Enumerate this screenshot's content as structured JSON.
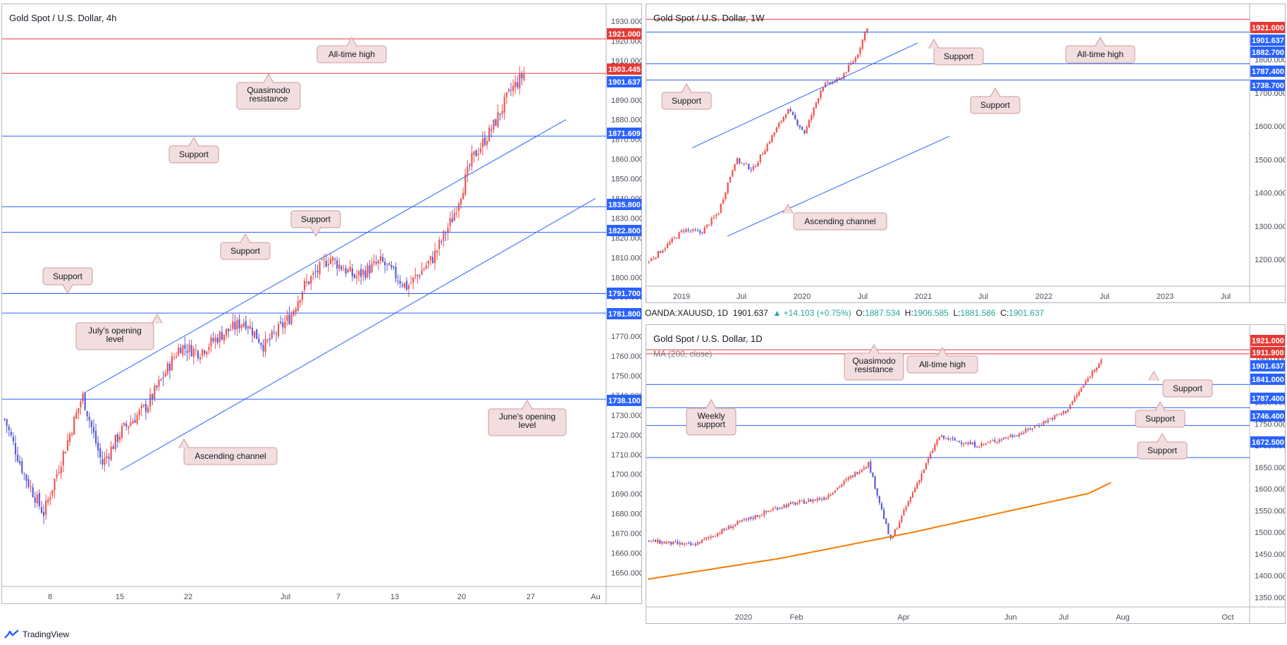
{
  "panels": [
    {
      "id": "h4",
      "title": "Gold Spot / U.S. Dollar, 4h",
      "ymin": 1643,
      "ymax": 1935,
      "ticks": [
        "1650.000",
        "1660.000",
        "1670.000",
        "1680.000",
        "1690.000",
        "1700.000",
        "1710.000",
        "1720.000",
        "1730.000",
        "1740.000",
        "1750.000",
        "1760.000",
        "1770.000",
        "1780.000",
        "1790.000",
        "1800.000",
        "1810.000",
        "1820.000",
        "1830.000",
        "1840.000",
        "1850.000",
        "1860.000",
        "1870.000",
        "1880.000",
        "1890.000",
        "1900.000",
        "1910.000",
        "1920.000",
        "1930.000"
      ],
      "xlabels": [
        "8",
        "15",
        "22",
        "Jul",
        "7",
        "13",
        "20",
        "27",
        "Au"
      ],
      "levels": [
        {
          "value": "1921.000",
          "color": "#e53935",
          "kind": "resistance"
        },
        {
          "value": "1903.445",
          "color": "#e53935",
          "kind": "resistance"
        },
        {
          "value": "1901.637",
          "color": "#2962ff",
          "kind": "price"
        },
        {
          "value": "1871.609",
          "color": "#2962ff",
          "kind": "support"
        },
        {
          "value": "1835.800",
          "color": "#2962ff",
          "kind": "support"
        },
        {
          "value": "1822.800",
          "color": "#2962ff",
          "kind": "support"
        },
        {
          "value": "1791.700",
          "color": "#2962ff",
          "kind": "support"
        },
        {
          "value": "1781.800",
          "color": "#2962ff",
          "kind": "support"
        },
        {
          "value": "1738.100",
          "color": "#2962ff",
          "kind": "support"
        }
      ],
      "callouts": [
        "All-time high",
        "Quasimodo resistance",
        "Support",
        "Support",
        "Support",
        "Support",
        "July's opening level",
        "June's opening level",
        "Ascending channel"
      ]
    },
    {
      "id": "w1",
      "title": "Gold Spot / U.S. Dollar, 1W",
      "ymin": 1120,
      "ymax": 1945,
      "ticks": [
        "1200.000",
        "1300.000",
        "1400.000",
        "1500.000",
        "1600.000",
        "1700.000",
        "1800.000",
        "1900.000"
      ],
      "xlabels": [
        "2019",
        "Jul",
        "2020",
        "Jul",
        "2021",
        "Jul",
        "2022",
        "Jul",
        "2023",
        "Jul"
      ],
      "levels": [
        {
          "value": "1921.000",
          "color": "#e53935",
          "kind": "resistance"
        },
        {
          "value": "1901.637",
          "color": "#2962ff",
          "kind": "price"
        },
        {
          "value": "1882.700",
          "color": "#2962ff",
          "kind": "support"
        },
        {
          "value": "1787.400",
          "color": "#2962ff",
          "kind": "support"
        },
        {
          "value": "1738.700",
          "color": "#2962ff",
          "kind": "support"
        }
      ],
      "callouts": [
        "Support",
        "All-time high",
        "Support",
        "Support",
        "Ascending channel"
      ]
    },
    {
      "id": "d1",
      "title": "Gold Spot / U.S. Dollar, 1D",
      "ma_label": "MA (200, close)",
      "ymin": 1328,
      "ymax": 1962,
      "ticks": [
        "1350.000",
        "1400.000",
        "1450.000",
        "1500.000",
        "1550.000",
        "1600.000",
        "1650.000",
        "1700.000",
        "1750.000",
        "1800.000",
        "1850.000",
        "1900.000",
        "1950.000"
      ],
      "xlabels": [
        "2020",
        "Feb",
        "Apr",
        "Jun",
        "Jul",
        "Aug",
        "Oct"
      ],
      "levels": [
        {
          "value": "1921.000",
          "color": "#e53935",
          "kind": "resistance"
        },
        {
          "value": "1911.900",
          "color": "#e53935",
          "kind": "resistance"
        },
        {
          "value": "1901.637",
          "color": "#2962ff",
          "kind": "price"
        },
        {
          "value": "1841.000",
          "color": "#2962ff",
          "kind": "support"
        },
        {
          "value": "1787.400",
          "color": "#2962ff",
          "kind": "support"
        },
        {
          "value": "1746.400",
          "color": "#2962ff",
          "kind": "support"
        },
        {
          "value": "1672.500",
          "color": "#2962ff",
          "kind": "support"
        }
      ],
      "callouts": [
        "Quasimodo resistance",
        "All-time high",
        "Support",
        "Weekly support",
        "Support",
        "Support"
      ]
    }
  ],
  "ohlc": {
    "symbol": "OANDA:XAUUSD, 1D",
    "last": "1901.637",
    "change": "▲ +14.103 (+0.75%)",
    "o_label": "O:",
    "o": "1887.534",
    "h_label": "H:",
    "h": "1906.585",
    "l_label": "L:",
    "l": "1881.586",
    "c_label": "C:",
    "c": "1901.637"
  },
  "brand": "TradingView",
  "colors": {
    "up": "#ef5350",
    "down": "#5b5bd6",
    "support": "#2962ff",
    "resistance": "#e53935",
    "ma": "#f57c00",
    "callout_bg": "#f2dede",
    "callout_border": "#d09a9a"
  },
  "chart_data": [
    {
      "type": "candlestick",
      "title": "Gold Spot / U.S. Dollar, 4h",
      "ylim": [
        1643,
        1935
      ],
      "x_ticks": [
        "8",
        "15",
        "22",
        "Jul",
        "7",
        "13",
        "20",
        "27",
        "Au"
      ],
      "series": [
        {
          "name": "XAUUSD",
          "approx_path": [
            [
              0,
              1728
            ],
            [
              3,
              1700
            ],
            [
              6,
              1680
            ],
            [
              9,
              1710
            ],
            [
              12,
              1740
            ],
            [
              15,
              1705
            ],
            [
              18,
              1722
            ],
            [
              22,
              1735
            ],
            [
              27,
              1765
            ],
            [
              30,
              1762
            ],
            [
              33,
              1770
            ],
            [
              37,
              1778
            ],
            [
              40,
              1765
            ],
            [
              44,
              1780
            ],
            [
              46,
              1795
            ],
            [
              50,
              1810
            ],
            [
              54,
              1800
            ],
            [
              58,
              1808
            ],
            [
              62,
              1795
            ],
            [
              66,
              1810
            ],
            [
              69,
              1830
            ],
            [
              72,
              1860
            ],
            [
              75,
              1875
            ],
            [
              78,
              1895
            ],
            [
              80,
              1903
            ]
          ]
        }
      ],
      "horizontal_levels": [
        1921.0,
        1903.445,
        1871.609,
        1835.8,
        1822.8,
        1791.7,
        1781.8,
        1738.1
      ],
      "last_price": 1901.637
    },
    {
      "type": "candlestick",
      "title": "Gold Spot / U.S. Dollar, 1W",
      "ylim": [
        1120,
        1945
      ],
      "x_ticks": [
        "2019",
        "Jul",
        "2020",
        "Jul",
        "2021",
        "Jul",
        "2022",
        "Jul",
        "2023",
        "Jul"
      ],
      "series": [
        {
          "name": "XAUUSD",
          "approx_path": [
            [
              0,
              1195
            ],
            [
              0.5,
              1240
            ],
            [
              1,
              1290
            ],
            [
              1.5,
              1280
            ],
            [
              2,
              1340
            ],
            [
              2.5,
              1500
            ],
            [
              3,
              1470
            ],
            [
              3.5,
              1560
            ],
            [
              4,
              1650
            ],
            [
              4.5,
              1580
            ],
            [
              5,
              1720
            ],
            [
              5.5,
              1740
            ],
            [
              6,
              1810
            ],
            [
              6.3,
              1900
            ]
          ]
        }
      ],
      "horizontal_levels": [
        1921.0,
        1882.7,
        1787.4,
        1738.7
      ],
      "last_price": 1901.637
    },
    {
      "type": "candlestick",
      "title": "Gold Spot / U.S. Dollar, 1D",
      "ylim": [
        1328,
        1962
      ],
      "x_ticks": [
        "2020",
        "Feb",
        "Apr",
        "Jun",
        "Jul",
        "Aug",
        "Oct"
      ],
      "series": [
        {
          "name": "XAUUSD",
          "approx_path": [
            [
              0,
              1480
            ],
            [
              1,
              1470
            ],
            [
              2,
              1520
            ],
            [
              3,
              1560
            ],
            [
              4,
              1580
            ],
            [
              5,
              1660
            ],
            [
              5.5,
              1480
            ],
            [
              6,
              1590
            ],
            [
              6.6,
              1720
            ],
            [
              7.5,
              1700
            ],
            [
              8.5,
              1730
            ],
            [
              9.5,
              1780
            ],
            [
              10.3,
              1900
            ]
          ]
        },
        {
          "name": "MA (200, close)",
          "approx_path": [
            [
              0,
              1392
            ],
            [
              3,
              1440
            ],
            [
              6,
              1500
            ],
            [
              8,
              1545
            ],
            [
              10,
              1590
            ],
            [
              10.5,
              1615
            ]
          ]
        }
      ],
      "horizontal_levels": [
        1921.0,
        1911.9,
        1841.0,
        1787.4,
        1746.4,
        1672.5
      ],
      "last_price": 1901.637
    }
  ]
}
